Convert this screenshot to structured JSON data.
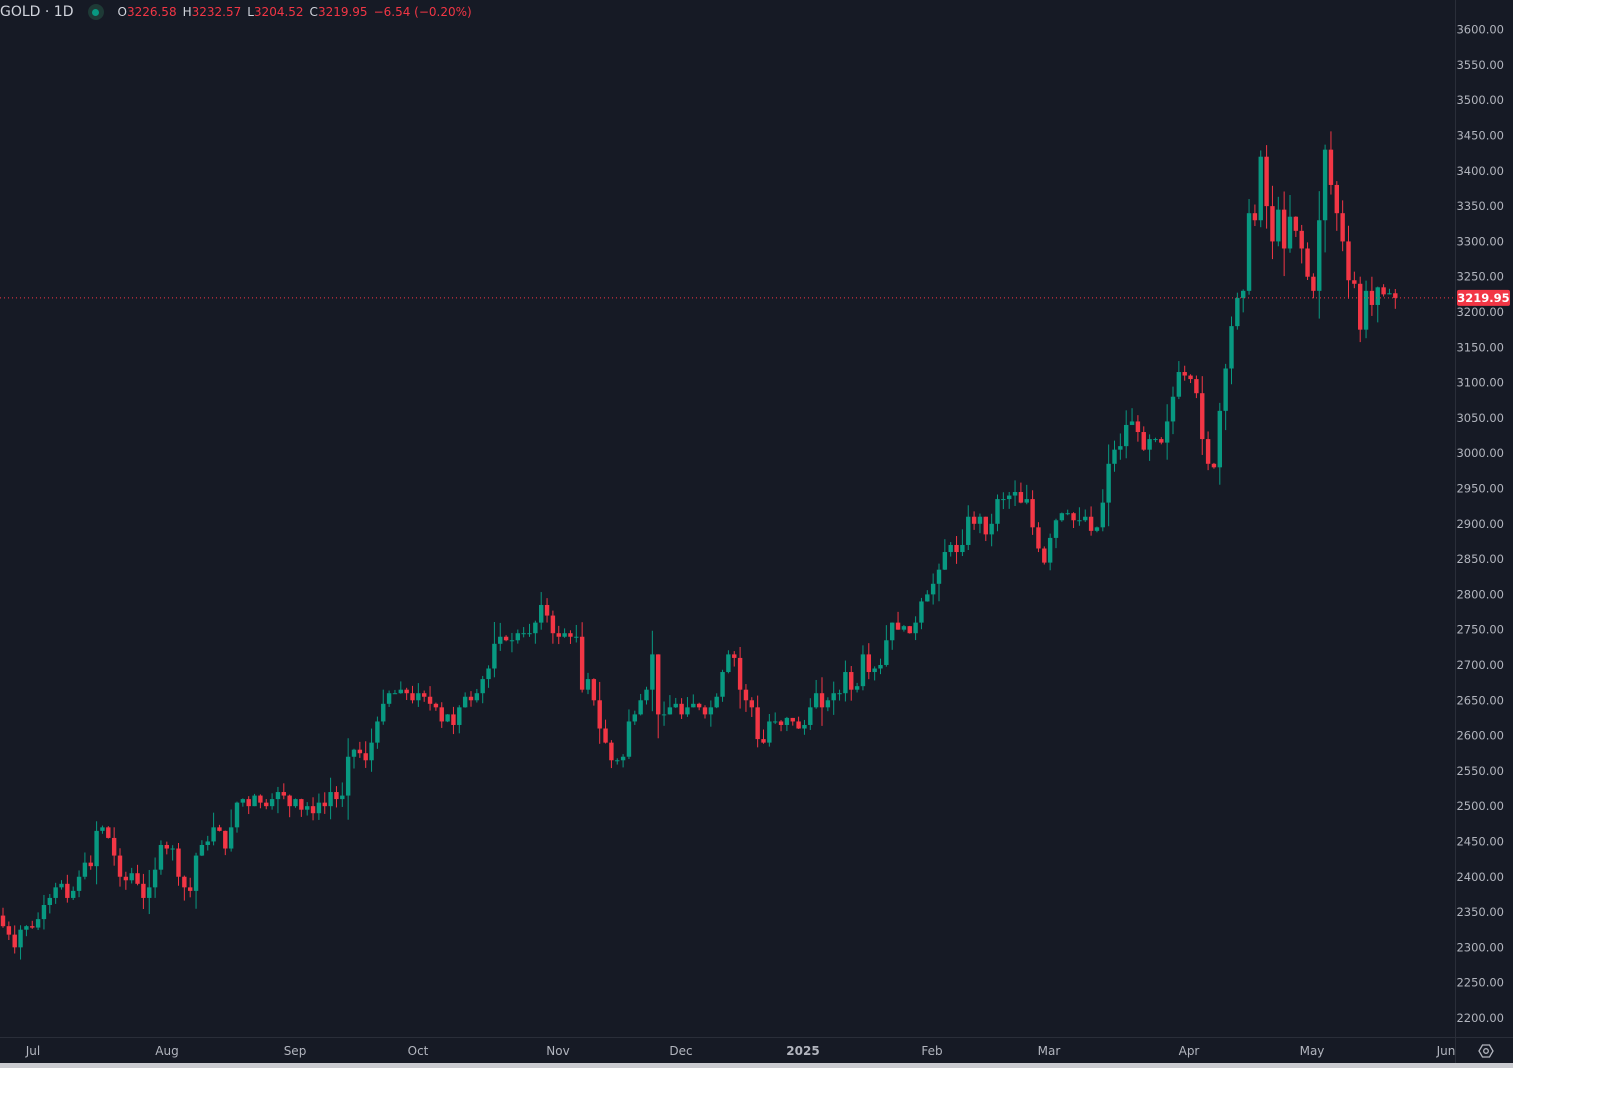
{
  "header": {
    "symbol": "GOLD · 1D",
    "status_icon": "market-open-dot",
    "open_label": "O",
    "open": "3226.58",
    "high_label": "H",
    "high": "3232.57",
    "low_label": "L",
    "low": "3204.52",
    "close_label": "C",
    "close": "3219.95",
    "change": "−6.54 (−0.20%)"
  },
  "colors": {
    "background": "#161a25",
    "up": "#089981",
    "down": "#f23645",
    "text": "#b2b5be"
  },
  "chart_data": {
    "type": "candlestick",
    "title": "GOLD · 1D",
    "ylim": [
      2173,
      3642
    ],
    "y_ticks": [
      "3600.00",
      "3550.00",
      "3500.00",
      "3450.00",
      "3400.00",
      "3350.00",
      "3300.00",
      "3250.00",
      "3200.00",
      "3150.00",
      "3100.00",
      "3050.00",
      "3000.00",
      "2950.00",
      "2900.00",
      "2850.00",
      "2800.00",
      "2750.00",
      "2700.00",
      "2650.00",
      "2600.00",
      "2550.00",
      "2500.00",
      "2450.00",
      "2400.00",
      "2350.00",
      "2300.00",
      "2250.00",
      "2200.00"
    ],
    "x_ticks": [
      "Jul",
      "Aug",
      "Sep",
      "Oct",
      "Nov",
      "Dec",
      "2025",
      "Feb",
      "Mar",
      "Apr",
      "May",
      "Jun"
    ],
    "last_price": "3219.95",
    "last_candle": {
      "open": 3226.58,
      "high": 3232.57,
      "low": 3204.52,
      "close": 3219.95
    },
    "closes": [
      2330,
      2318,
      2300,
      2325,
      2330,
      2328,
      2340,
      2360,
      2370,
      2385,
      2390,
      2370,
      2380,
      2400,
      2420,
      2415,
      2465,
      2470,
      2455,
      2430,
      2400,
      2395,
      2405,
      2390,
      2370,
      2385,
      2410,
      2445,
      2440,
      2440,
      2400,
      2385,
      2380,
      2430,
      2445,
      2450,
      2470,
      2465,
      2440,
      2470,
      2505,
      2510,
      2500,
      2515,
      2505,
      2500,
      2510,
      2520,
      2515,
      2500,
      2510,
      2495,
      2500,
      2490,
      2505,
      2500,
      2520,
      2510,
      2515,
      2570,
      2580,
      2575,
      2565,
      2590,
      2620,
      2645,
      2660,
      2660,
      2665,
      2660,
      2650,
      2660,
      2655,
      2645,
      2640,
      2620,
      2630,
      2615,
      2640,
      2655,
      2650,
      2660,
      2680,
      2695,
      2730,
      2740,
      2735,
      2735,
      2745,
      2745,
      2745,
      2760,
      2785,
      2770,
      2745,
      2740,
      2745,
      2740,
      2740,
      2665,
      2680,
      2650,
      2610,
      2590,
      2565,
      2565,
      2570,
      2620,
      2630,
      2650,
      2665,
      2715,
      2630,
      2630,
      2640,
      2645,
      2630,
      2640,
      2645,
      2640,
      2630,
      2640,
      2655,
      2690,
      2715,
      2710,
      2665,
      2650,
      2640,
      2595,
      2590,
      2620,
      2620,
      2615,
      2625,
      2620,
      2610,
      2615,
      2640,
      2660,
      2640,
      2650,
      2660,
      2660,
      2690,
      2665,
      2670,
      2715,
      2690,
      2695,
      2700,
      2735,
      2760,
      2750,
      2755,
      2745,
      2760,
      2790,
      2800,
      2815,
      2835,
      2860,
      2870,
      2860,
      2870,
      2910,
      2900,
      2910,
      2885,
      2900,
      2935,
      2935,
      2940,
      2945,
      2930,
      2935,
      2895,
      2865,
      2845,
      2880,
      2905,
      2915,
      2915,
      2905,
      2905,
      2910,
      2890,
      2895,
      2930,
      2985,
      3005,
      3010,
      3040,
      3045,
      3030,
      3005,
      3020,
      3020,
      3015,
      3045,
      3080,
      3115,
      3110,
      3105,
      3085,
      3020,
      2985,
      2980,
      3060,
      3120,
      3180,
      3220,
      3230,
      3340,
      3330,
      3420,
      3350,
      3300,
      3345,
      3290,
      3335,
      3315,
      3290,
      3250,
      3230,
      3330,
      3430,
      3380,
      3340,
      3300,
      3245,
      3240,
      3175,
      3230,
      3210,
      3235,
      3225,
      3226.58,
      3219.95
    ]
  }
}
